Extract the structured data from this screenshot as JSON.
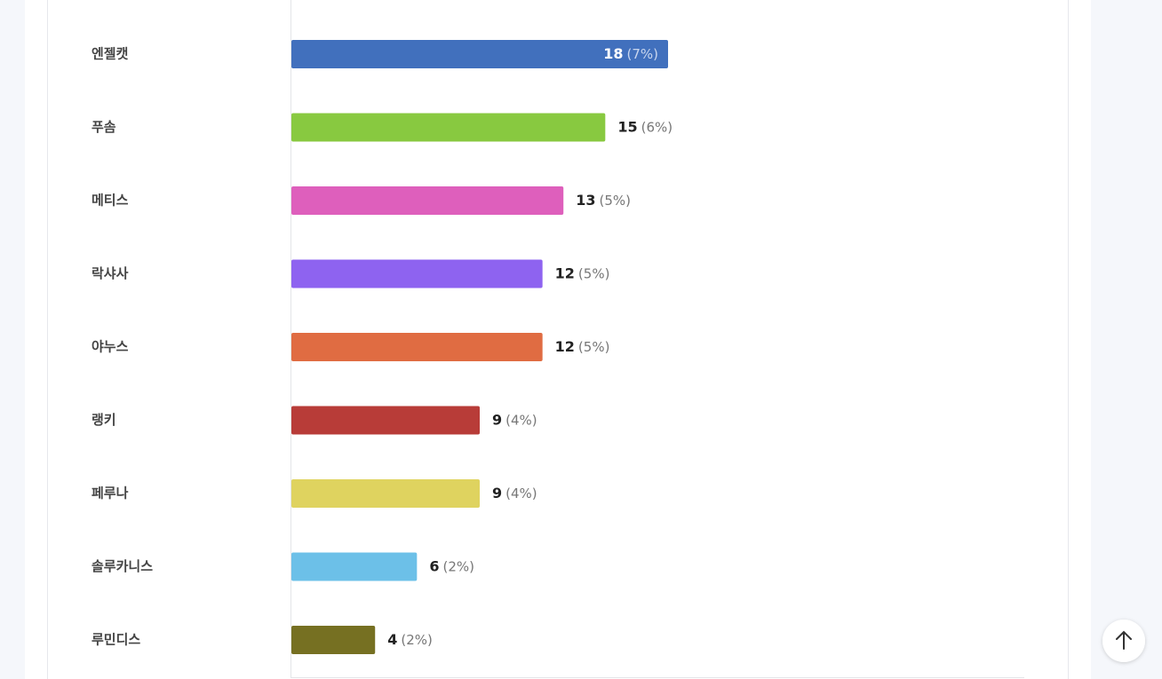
{
  "chart_data": {
    "type": "bar",
    "categories": [
      "엔젤캣",
      "푸솜",
      "메티스",
      "락샤사",
      "야누스",
      "랭키",
      "페루나",
      "솔루카니스",
      "루민디스"
    ],
    "series": [
      {
        "values": [
          18,
          15,
          13,
          12,
          12,
          9,
          9,
          6,
          4
        ],
        "colors": [
          "#4170bd",
          "#88c940",
          "#de5fbc",
          "#8e63f0",
          "#e06c42",
          "#b83c38",
          "#dfd35f",
          "#6cc0e8",
          "#767022"
        ]
      }
    ],
    "percent_labels": [
      "(7%)",
      "(6%)",
      "(5%)",
      "(5%)",
      "(5%)",
      "(4%)",
      "(4%)",
      "(2%)",
      "(2%)"
    ]
  }
}
